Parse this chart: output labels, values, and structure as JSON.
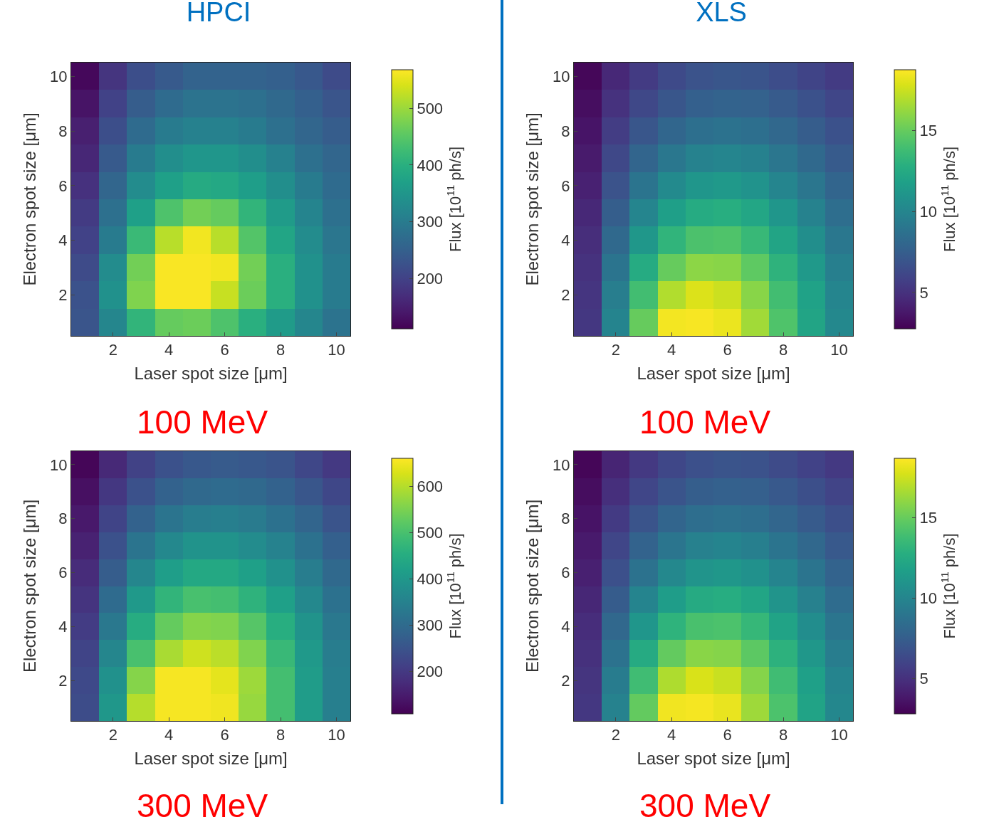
{
  "chart_data": [
    {
      "type": "heatmap",
      "title": "HPCI",
      "annotations": [
        "100 MeV"
      ],
      "xlabel": "Laser spot size [μm]",
      "ylabel": "Electron spot size [μm]",
      "clabel": "Flux [10$^{11}$ ph/s]",
      "categories": [
        null,
        "2",
        null,
        "4",
        null,
        "6",
        null,
        "8",
        null,
        "10"
      ],
      "y_categories": [
        "10",
        null,
        "8",
        null,
        "6",
        null,
        "4",
        null,
        "2",
        null
      ],
      "clim": [
        111,
        568
      ],
      "cticks": [
        200,
        300,
        400,
        500
      ],
      "cells": [
        [
          120,
          180,
          220,
          240,
          255,
          255,
          255,
          250,
          235,
          215
        ],
        [
          135,
          200,
          245,
          270,
          285,
          285,
          280,
          265,
          250,
          230
        ],
        [
          150,
          220,
          270,
          300,
          310,
          310,
          300,
          280,
          260,
          245
        ],
        [
          160,
          240,
          300,
          335,
          350,
          350,
          335,
          310,
          280,
          260
        ],
        [
          175,
          260,
          330,
          370,
          390,
          385,
          365,
          335,
          300,
          270
        ],
        [
          190,
          280,
          370,
          440,
          470,
          460,
          410,
          360,
          315,
          280
        ],
        [
          200,
          300,
          420,
          520,
          560,
          520,
          445,
          380,
          330,
          290
        ],
        [
          215,
          330,
          470,
          565,
          565,
          560,
          470,
          400,
          340,
          300
        ],
        [
          225,
          340,
          480,
          565,
          565,
          530,
          465,
          400,
          340,
          300
        ],
        [
          230,
          320,
          410,
          460,
          465,
          440,
          400,
          360,
          320,
          285
        ]
      ]
    },
    {
      "type": "heatmap",
      "title": "XLS",
      "annotations": [
        "100 MeV"
      ],
      "xlabel": "Laser spot size [μm]",
      "ylabel": "Electron spot size [μm]",
      "clabel": "Flux [10$^{11}$ ph/s]",
      "categories": [
        null,
        "2",
        null,
        "4",
        null,
        "6",
        null,
        "8",
        null,
        "10"
      ],
      "y_categories": [
        "10",
        null,
        "8",
        null,
        "6",
        null,
        "4",
        null,
        "2",
        null
      ],
      "clim": [
        2.75,
        18.75
      ],
      "cticks": [
        5,
        10,
        15
      ],
      "cells": [
        [
          3.0,
          4.5,
          5.5,
          6.3,
          6.8,
          7.0,
          6.9,
          6.5,
          6.0,
          5.5
        ],
        [
          3.3,
          5.0,
          6.2,
          7.0,
          7.6,
          7.8,
          7.7,
          7.3,
          6.7,
          6.1
        ],
        [
          3.6,
          5.6,
          7.0,
          8.0,
          8.6,
          8.8,
          8.6,
          8.1,
          7.4,
          6.7
        ],
        [
          3.9,
          6.2,
          7.9,
          9.1,
          9.8,
          10.0,
          9.7,
          9.0,
          8.2,
          7.3
        ],
        [
          4.2,
          6.8,
          8.9,
          10.3,
          11.1,
          11.3,
          10.9,
          10.0,
          9.0,
          7.9
        ],
        [
          4.5,
          7.5,
          10.0,
          11.7,
          12.6,
          12.8,
          12.2,
          11.1,
          9.8,
          8.5
        ],
        [
          4.8,
          8.2,
          11.2,
          13.2,
          14.2,
          14.3,
          13.5,
          12.1,
          10.6,
          9.1
        ],
        [
          5.0,
          8.9,
          12.6,
          15.0,
          16.0,
          15.9,
          14.8,
          13.1,
          11.3,
          9.6
        ],
        [
          5.2,
          9.5,
          13.9,
          16.9,
          17.9,
          17.5,
          15.9,
          13.9,
          11.9,
          10.0
        ],
        [
          5.3,
          9.9,
          15.0,
          18.5,
          18.6,
          18.3,
          16.5,
          14.3,
          12.1,
          10.2
        ]
      ]
    },
    {
      "type": "heatmap",
      "annotations": [
        "300 MeV"
      ],
      "xlabel": "Laser spot size [μm]",
      "ylabel": "Electron spot size [μm]",
      "clabel": "Flux [10$^{11}$ ph/s]",
      "categories": [
        null,
        "2",
        null,
        "4",
        null,
        "6",
        null,
        "8",
        null,
        "10"
      ],
      "y_categories": [
        "10",
        null,
        "8",
        null,
        "6",
        null,
        "4",
        null,
        "2",
        null
      ],
      "clim": [
        108,
        661
      ],
      "cticks": [
        200,
        300,
        400,
        500,
        600
      ],
      "cells": [
        [
          115,
          170,
          215,
          245,
          260,
          265,
          260,
          250,
          225,
          200
        ],
        [
          130,
          195,
          245,
          280,
          295,
          300,
          295,
          280,
          255,
          225
        ],
        [
          145,
          220,
          280,
          320,
          340,
          345,
          335,
          315,
          285,
          250
        ],
        [
          160,
          245,
          320,
          365,
          390,
          390,
          375,
          350,
          315,
          275
        ],
        [
          175,
          270,
          360,
          415,
          440,
          440,
          420,
          385,
          340,
          295
        ],
        [
          190,
          300,
          405,
          470,
          500,
          495,
          465,
          420,
          365,
          315
        ],
        [
          205,
          330,
          450,
          530,
          560,
          555,
          515,
          455,
          390,
          330
        ],
        [
          220,
          360,
          500,
          590,
          620,
          605,
          555,
          480,
          405,
          340
        ],
        [
          230,
          385,
          560,
          655,
          655,
          640,
          580,
          495,
          410,
          345
        ],
        [
          235,
          400,
          600,
          655,
          655,
          650,
          575,
          495,
          410,
          345
        ]
      ]
    },
    {
      "type": "heatmap",
      "annotations": [
        "300 MeV"
      ],
      "xlabel": "Laser spot size [μm]",
      "ylabel": "Electron spot size [μm]",
      "clabel": "Flux [10$^{11}$ ph/s]",
      "categories": [
        null,
        "2",
        null,
        "4",
        null,
        "6",
        null,
        "8",
        null,
        "10"
      ],
      "y_categories": [
        "10",
        null,
        "8",
        null,
        "6",
        null,
        "4",
        null,
        "2",
        null
      ],
      "clim": [
        2.8,
        18.7
      ],
      "cticks": [
        5,
        10,
        15
      ],
      "cells": [
        [
          3.0,
          4.4,
          5.4,
          6.2,
          6.7,
          6.9,
          6.8,
          6.4,
          5.9,
          5.4
        ],
        [
          3.3,
          4.9,
          6.1,
          6.9,
          7.5,
          7.7,
          7.6,
          7.2,
          6.6,
          6.0
        ],
        [
          3.6,
          5.5,
          6.9,
          7.9,
          8.5,
          8.7,
          8.5,
          8.0,
          7.3,
          6.6
        ],
        [
          3.9,
          6.1,
          7.8,
          9.0,
          9.7,
          9.9,
          9.6,
          8.9,
          8.1,
          7.2
        ],
        [
          4.2,
          6.7,
          8.8,
          10.2,
          11.0,
          11.2,
          10.8,
          9.9,
          8.9,
          7.8
        ],
        [
          4.5,
          7.4,
          9.9,
          11.6,
          12.5,
          12.7,
          12.1,
          11.0,
          9.7,
          8.4
        ],
        [
          4.8,
          8.1,
          11.1,
          13.1,
          14.1,
          14.2,
          13.4,
          12.0,
          10.5,
          9.0
        ],
        [
          5.0,
          8.8,
          12.5,
          14.9,
          15.9,
          15.8,
          14.7,
          13.0,
          11.2,
          9.5
        ],
        [
          5.2,
          9.4,
          13.8,
          16.8,
          17.8,
          17.4,
          15.8,
          13.8,
          11.8,
          9.9
        ],
        [
          5.3,
          9.8,
          14.9,
          18.4,
          18.5,
          18.2,
          16.4,
          14.2,
          12.0,
          10.1
        ]
      ]
    }
  ]
}
